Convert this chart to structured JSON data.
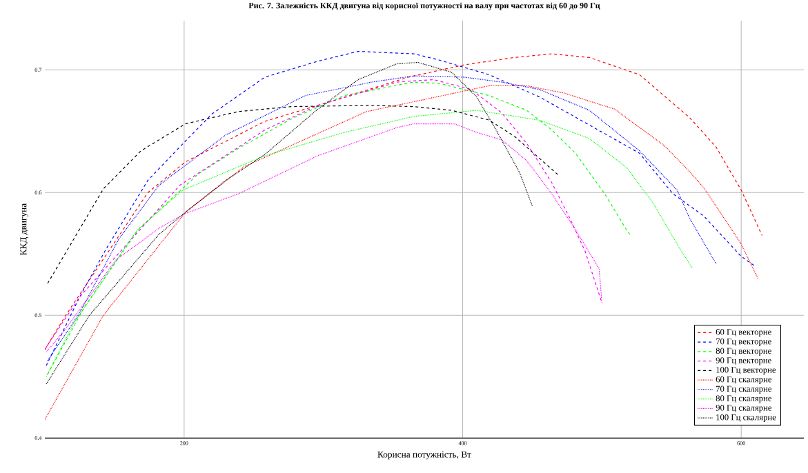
{
  "chart_data": {
    "type": "line",
    "title": "Рис. 7. Залежність ККД двигуна від корисної потужності на валу при частотах від 60 до 90 Гц",
    "xlabel": "Корисна потужність, Вт",
    "ylabel": "ККД двигуна",
    "xlim": [
      100,
      645
    ],
    "ylim": [
      0.4,
      0.74
    ],
    "xticks": [
      200,
      400,
      600
    ],
    "yticks": [
      0.4,
      0.5,
      0.6,
      0.7
    ],
    "grid": true,
    "legend": "bottom right",
    "series": [
      {
        "name": "60 Гц векторне",
        "color": "#ff0000",
        "line_style": "dashed",
        "x": [
          100,
          115,
          174,
          201,
          258,
          296,
          361,
          401,
          437,
          464,
          491,
          527,
          563,
          582,
          600,
          615
        ],
        "values": [
          0.472,
          0.5,
          0.6,
          0.625,
          0.658,
          0.671,
          0.694,
          0.704,
          0.71,
          0.713,
          0.71,
          0.696,
          0.661,
          0.637,
          0.602,
          0.565
        ]
      },
      {
        "name": "70 Гц векторне",
        "color": "#0000ff",
        "line_style": "dashed",
        "x": [
          101,
          125,
          144,
          174,
          201,
          220,
          258,
          296,
          325,
          365,
          383,
          419,
          455,
          491,
          527,
          551,
          573,
          600,
          610
        ],
        "values": [
          0.459,
          0.515,
          0.554,
          0.61,
          0.642,
          0.664,
          0.694,
          0.707,
          0.715,
          0.713,
          0.708,
          0.696,
          0.678,
          0.655,
          0.632,
          0.599,
          0.581,
          0.548,
          0.54
        ]
      },
      {
        "name": "80 Гц векторне",
        "color": "#00ff00",
        "line_style": "dashed",
        "x": [
          102,
          129,
          168,
          210,
          239,
          277,
          315,
          365,
          383,
          419,
          446,
          464,
          481,
          502,
          518,
          520
        ],
        "values": [
          0.452,
          0.508,
          0.571,
          0.615,
          0.636,
          0.66,
          0.679,
          0.69,
          0.689,
          0.679,
          0.667,
          0.651,
          0.632,
          0.599,
          0.569,
          0.566
        ]
      },
      {
        "name": "90 Гц векторне",
        "color": "#ff00ff",
        "line_style": "dashed",
        "x": [
          101,
          125,
          197,
          258,
          296,
          353,
          379,
          406,
          428,
          446,
          464,
          477,
          488,
          500
        ],
        "values": [
          0.474,
          0.515,
          0.606,
          0.651,
          0.671,
          0.69,
          0.692,
          0.684,
          0.665,
          0.64,
          0.608,
          0.579,
          0.552,
          0.51
        ]
      },
      {
        "name": "100 Гц векторне",
        "color": "#000000",
        "line_style": "dashed",
        "x": [
          102,
          142,
          169,
          201,
          239,
          277,
          334,
          365,
          392,
          419,
          437,
          455,
          469
        ],
        "values": [
          0.526,
          0.603,
          0.634,
          0.656,
          0.666,
          0.67,
          0.671,
          0.67,
          0.667,
          0.659,
          0.646,
          0.628,
          0.614
        ]
      },
      {
        "name": "60 Гц скалярне",
        "color": "#ff0000",
        "line_style": "dotted",
        "x": [
          100,
          142,
          201,
          243,
          331,
          365,
          419,
          446,
          473,
          509,
          545,
          563,
          573,
          582,
          600,
          612
        ],
        "values": [
          0.415,
          0.5,
          0.584,
          0.621,
          0.666,
          0.674,
          0.687,
          0.687,
          0.681,
          0.668,
          0.638,
          0.617,
          0.604,
          0.589,
          0.558,
          0.53
        ]
      },
      {
        "name": "70 Гц скалярне",
        "color": "#0000ff",
        "line_style": "dotted",
        "x": [
          102,
          125,
          153,
          182,
          230,
          287,
          335,
          365,
          401,
          428,
          455,
          491,
          527,
          554,
          563,
          582
        ],
        "values": [
          0.463,
          0.502,
          0.562,
          0.606,
          0.647,
          0.679,
          0.69,
          0.695,
          0.694,
          0.69,
          0.684,
          0.667,
          0.634,
          0.602,
          0.579,
          0.542
        ]
      },
      {
        "name": "80 Гц скалярне",
        "color": "#00ff00",
        "line_style": "dotted",
        "x": [
          101,
          121,
          166,
          199,
          258,
          315,
          365,
          410,
          455,
          491,
          518,
          537,
          554,
          565
        ],
        "values": [
          0.45,
          0.494,
          0.569,
          0.602,
          0.63,
          0.649,
          0.662,
          0.667,
          0.659,
          0.644,
          0.62,
          0.591,
          0.558,
          0.538
        ]
      },
      {
        "name": "90 Гц скалярне",
        "color": "#ff00ff",
        "line_style": "dotted",
        "x": [
          101,
          115,
          151,
          182,
          201,
          239,
          296,
          353,
          365,
          394,
          410,
          428,
          446,
          464,
          482,
          498,
          500
        ],
        "values": [
          0.47,
          0.489,
          0.545,
          0.571,
          0.583,
          0.599,
          0.63,
          0.653,
          0.656,
          0.656,
          0.649,
          0.643,
          0.626,
          0.599,
          0.568,
          0.538,
          0.51
        ]
      },
      {
        "name": "100 Гц скалярне",
        "color": "#000000",
        "line_style": "dotted",
        "x": [
          101,
          132,
          182,
          201,
          230,
          258,
          296,
          325,
          353,
          368,
          392,
          410,
          424,
          441,
          450
        ],
        "values": [
          0.444,
          0.5,
          0.566,
          0.584,
          0.61,
          0.631,
          0.668,
          0.692,
          0.705,
          0.706,
          0.698,
          0.678,
          0.651,
          0.616,
          0.589
        ]
      }
    ]
  }
}
